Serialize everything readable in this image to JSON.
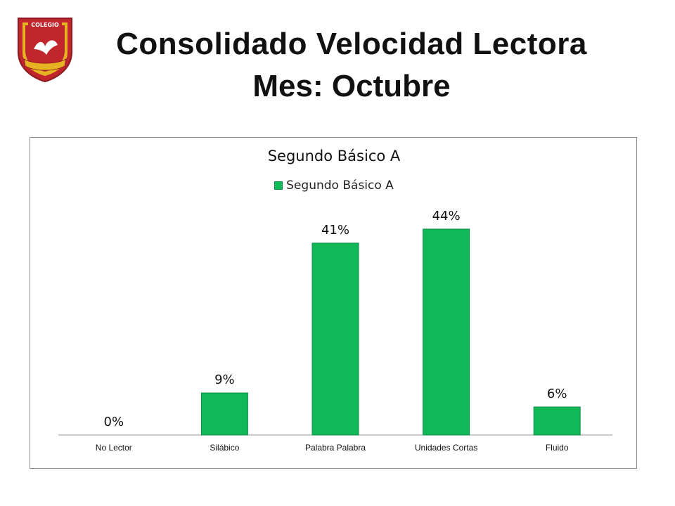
{
  "header": {
    "title_line1": "Consolidado Velocidad Lectora",
    "title_line2": "Mes: Octubre",
    "logo_text": "COLEGIO"
  },
  "colors": {
    "bar": "#10b858",
    "bar_edge": "#0a8f47",
    "crest_red": "#c0262c",
    "crest_gold": "#e6b422"
  },
  "chart_data": {
    "type": "bar",
    "title": "Segundo Básico A",
    "legend_position": "top",
    "grid": false,
    "ylim": [
      0,
      50
    ],
    "categories": [
      "No Lector",
      "Silábico",
      "Palabra Palabra",
      "Unidades Cortas",
      "Fluido"
    ],
    "series": [
      {
        "name": "Segundo Básico A",
        "values": [
          0,
          9,
          41,
          44,
          6
        ],
        "labels": [
          "0%",
          "9%",
          "41%",
          "44%",
          "6%"
        ]
      }
    ]
  }
}
